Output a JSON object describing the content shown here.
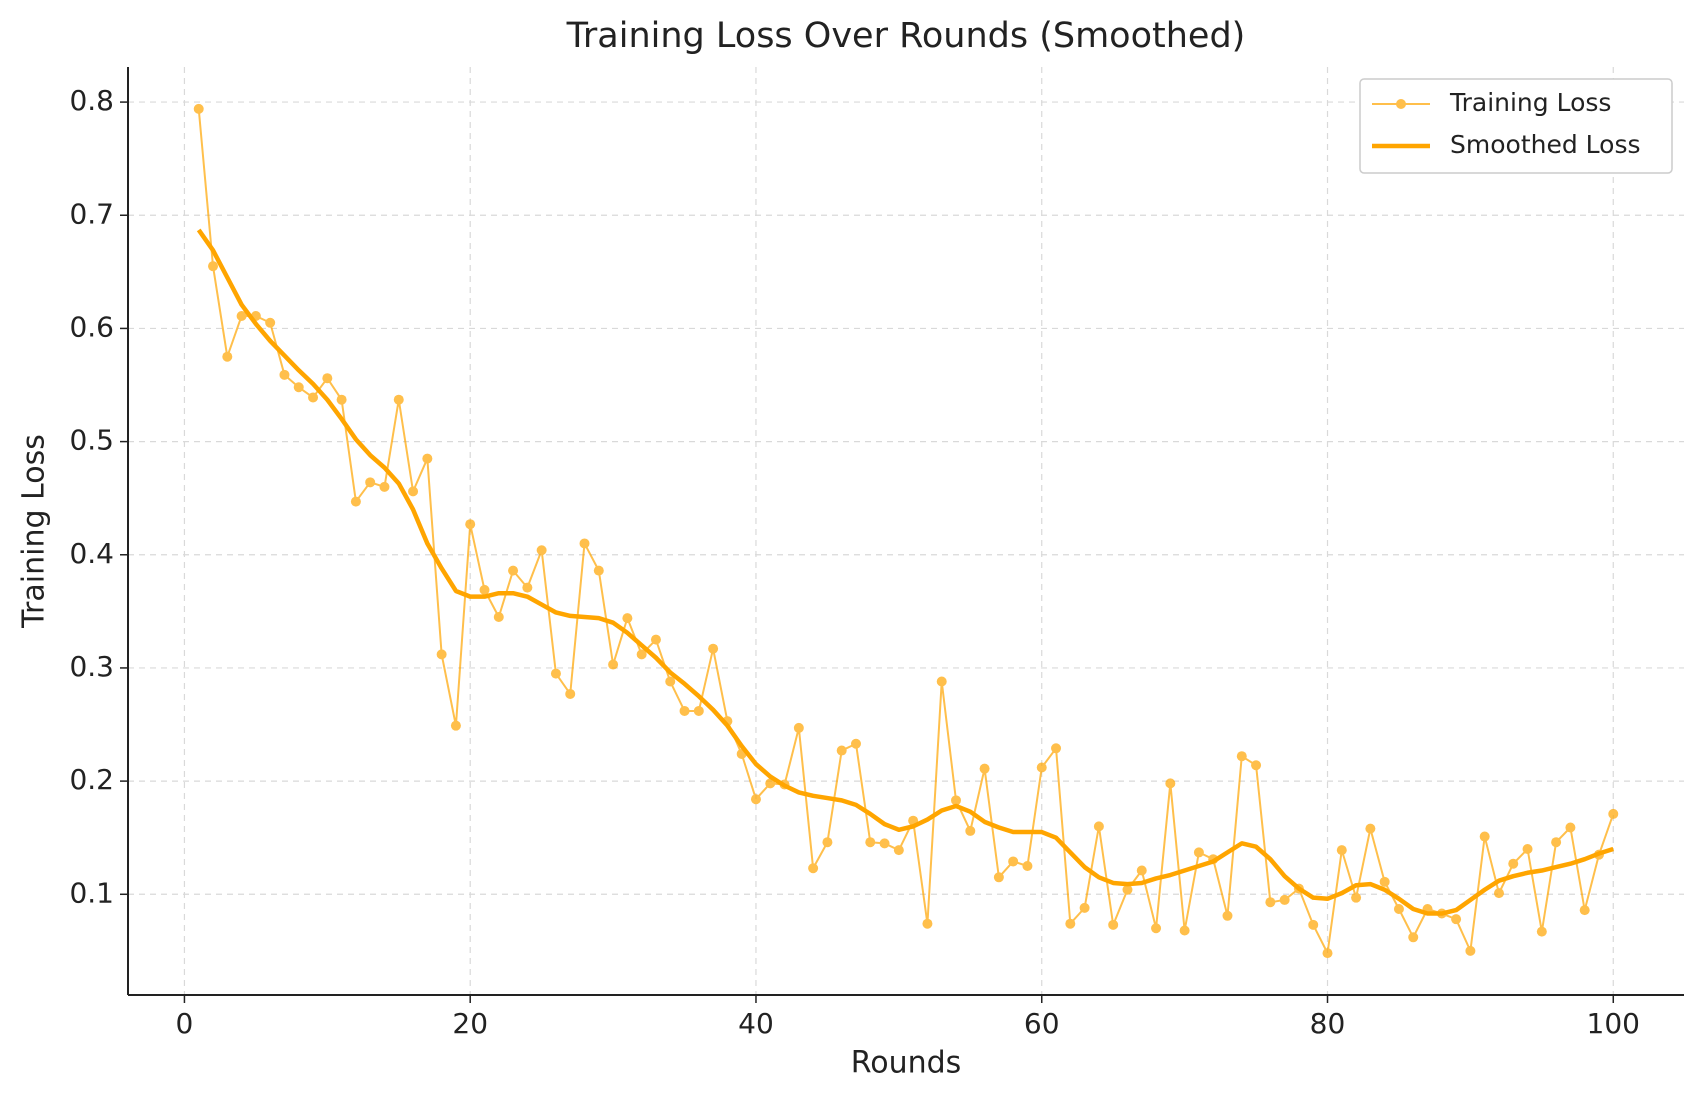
{
  "chart_data": {
    "type": "line",
    "title": "Training Loss Over Rounds (Smoothed)",
    "x_label": "Rounds",
    "y_label": "Training Loss",
    "x": [
      1,
      2,
      3,
      4,
      5,
      6,
      7,
      8,
      9,
      10,
      11,
      12,
      13,
      14,
      15,
      16,
      17,
      18,
      19,
      20,
      21,
      22,
      23,
      24,
      25,
      26,
      27,
      28,
      29,
      30,
      31,
      32,
      33,
      34,
      35,
      36,
      37,
      38,
      39,
      40,
      41,
      42,
      43,
      44,
      45,
      46,
      47,
      48,
      49,
      50,
      51,
      52,
      53,
      54,
      55,
      56,
      57,
      58,
      59,
      60,
      61,
      62,
      63,
      64,
      65,
      66,
      67,
      68,
      69,
      70,
      71,
      72,
      73,
      74,
      75,
      76,
      77,
      78,
      79,
      80,
      81,
      82,
      83,
      84,
      85,
      86,
      87,
      88,
      89,
      90,
      91,
      92,
      93,
      94,
      95,
      96,
      97,
      98,
      99,
      100
    ],
    "series": [
      {
        "name": "Training Loss",
        "color": "#ffa500",
        "alpha": 0.7,
        "markers": true,
        "line_width": 2,
        "values": [
          0.794,
          0.655,
          0.575,
          0.611,
          0.611,
          0.605,
          0.559,
          0.548,
          0.539,
          0.556,
          0.537,
          0.447,
          0.464,
          0.46,
          0.537,
          0.456,
          0.485,
          0.312,
          0.249,
          0.427,
          0.369,
          0.345,
          0.386,
          0.371,
          0.404,
          0.295,
          0.277,
          0.41,
          0.386,
          0.303,
          0.344,
          0.312,
          0.325,
          0.288,
          0.262,
          0.262,
          0.317,
          0.253,
          0.224,
          0.184,
          0.198,
          0.197,
          0.247,
          0.123,
          0.146,
          0.227,
          0.233,
          0.146,
          0.145,
          0.139,
          0.165,
          0.074,
          0.288,
          0.183,
          0.156,
          0.211,
          0.115,
          0.129,
          0.125,
          0.212,
          0.229,
          0.074,
          0.088,
          0.16,
          0.073,
          0.104,
          0.121,
          0.07,
          0.198,
          0.068,
          0.137,
          0.131,
          0.081,
          0.222,
          0.214,
          0.093,
          0.095,
          0.105,
          0.073,
          0.048,
          0.139,
          0.097,
          0.158,
          0.111,
          0.087,
          0.062,
          0.087,
          0.083,
          0.078,
          0.05,
          0.151,
          0.101,
          0.127,
          0.14,
          0.067,
          0.146,
          0.159,
          0.086,
          0.135,
          0.171
        ]
      },
      {
        "name": "Smoothed Loss",
        "color": "#ffa500",
        "alpha": 1,
        "markers": false,
        "line_width": 4.5,
        "values": [
          0.687,
          0.669,
          0.645,
          0.621,
          0.604,
          0.589,
          0.576,
          0.563,
          0.551,
          0.537,
          0.52,
          0.502,
          0.488,
          0.477,
          0.463,
          0.44,
          0.41,
          0.388,
          0.368,
          0.363,
          0.363,
          0.366,
          0.366,
          0.363,
          0.356,
          0.349,
          0.346,
          0.345,
          0.344,
          0.34,
          0.331,
          0.32,
          0.309,
          0.296,
          0.286,
          0.275,
          0.263,
          0.249,
          0.231,
          0.215,
          0.204,
          0.196,
          0.19,
          0.187,
          0.185,
          0.183,
          0.179,
          0.171,
          0.162,
          0.157,
          0.16,
          0.166,
          0.174,
          0.178,
          0.173,
          0.164,
          0.159,
          0.155,
          0.155,
          0.155,
          0.15,
          0.137,
          0.124,
          0.115,
          0.11,
          0.109,
          0.11,
          0.114,
          0.117,
          0.121,
          0.125,
          0.129,
          0.137,
          0.145,
          0.142,
          0.131,
          0.116,
          0.105,
          0.097,
          0.096,
          0.101,
          0.108,
          0.109,
          0.104,
          0.096,
          0.087,
          0.083,
          0.083,
          0.086,
          0.095,
          0.104,
          0.112,
          0.116,
          0.119,
          0.121,
          0.124,
          0.127,
          0.131,
          0.136,
          0.14
        ]
      }
    ],
    "xlim": [
      -3.95,
      104.95
    ],
    "ylim": [
      0.011,
      0.831
    ],
    "xticks": [
      0,
      20,
      40,
      60,
      80,
      100
    ],
    "yticks": [
      0.1,
      0.2,
      0.3,
      0.4,
      0.5,
      0.6,
      0.7,
      0.8
    ],
    "grid": true,
    "legend": "upper right"
  }
}
